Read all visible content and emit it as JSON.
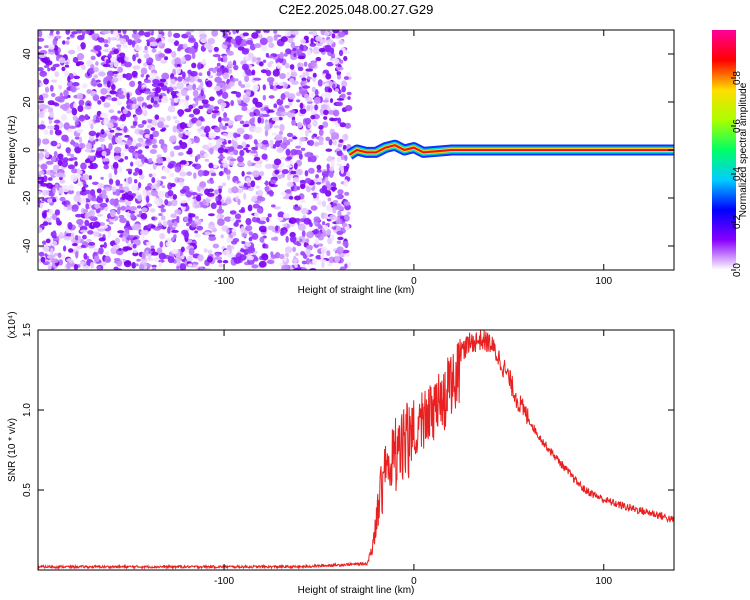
{
  "title": "C2E2.2025.048.00.27.G29",
  "chart_data": [
    {
      "type": "heatmap",
      "xlabel": "Height of straight line (km)",
      "ylabel": "Frequency (Hz)",
      "xlim": [
        -198,
        137
      ],
      "ylim": [
        -50,
        50
      ],
      "xticks": [
        -100,
        0,
        100
      ],
      "xtick_labels": [
        "-100",
        "0",
        "100"
      ],
      "yticks": [
        -40,
        -20,
        0,
        20,
        40
      ],
      "ytick_labels": [
        "-40",
        "-20",
        "0",
        "20",
        "40"
      ],
      "noise_region_x": [
        -198,
        -34
      ],
      "signal_band": {
        "x": [
          -34,
          -30,
          -25,
          -20,
          -15,
          -10,
          -5,
          0,
          5,
          20,
          40,
          60,
          80,
          100,
          120,
          137
        ],
        "freq": [
          -2,
          0,
          -1,
          -1,
          1,
          2,
          0,
          1,
          -1,
          0,
          0,
          0,
          0,
          0,
          0,
          0
        ]
      },
      "colorbar": {
        "label": "Normalized spectral amplitude",
        "ticks": [
          0.0,
          0.2,
          0.4,
          0.6,
          0.8
        ],
        "tick_labels": [
          "0.0",
          "0.2",
          "0.4",
          "0.6",
          "0.8"
        ],
        "range": [
          0,
          1
        ],
        "colors": [
          "#ffffff",
          "#8800ff",
          "#0000ff",
          "#00ccff",
          "#00ff66",
          "#aaff00",
          "#ffdd00",
          "#ff0000",
          "#ff0099"
        ]
      }
    },
    {
      "type": "line",
      "xlabel": "Height of straight line (km)",
      "ylabel": "SNR (10 * v/v)",
      "scale_label": "(x10⁴)",
      "xlim": [
        -198,
        137
      ],
      "ylim": [
        0,
        1.5
      ],
      "xticks": [
        -100,
        0,
        100
      ],
      "xtick_labels": [
        "-100",
        "0",
        "100"
      ],
      "yticks": [
        0.5,
        1.0,
        1.5
      ],
      "ytick_labels": [
        "0.5",
        "1.0",
        "1.5"
      ],
      "line_color": "#e82020",
      "series": [
        {
          "x": [
            -198,
            -120,
            -60,
            -25,
            -22,
            -20,
            -18,
            -15,
            -12,
            -10,
            -5,
            0,
            5,
            10,
            15,
            20,
            25,
            30,
            35,
            40,
            45,
            50,
            55,
            60,
            65,
            70,
            75,
            80,
            85,
            90,
            100,
            110,
            120,
            130,
            137
          ],
          "values": [
            0.02,
            0.02,
            0.02,
            0.04,
            0.15,
            0.35,
            0.55,
            0.75,
            0.85,
            0.9,
            0.95,
            1.0,
            1.05,
            1.1,
            1.2,
            1.3,
            1.37,
            1.42,
            1.44,
            1.42,
            1.32,
            1.2,
            1.05,
            0.95,
            0.85,
            0.77,
            0.7,
            0.63,
            0.56,
            0.5,
            0.44,
            0.4,
            0.37,
            0.34,
            0.31
          ]
        }
      ]
    }
  ]
}
